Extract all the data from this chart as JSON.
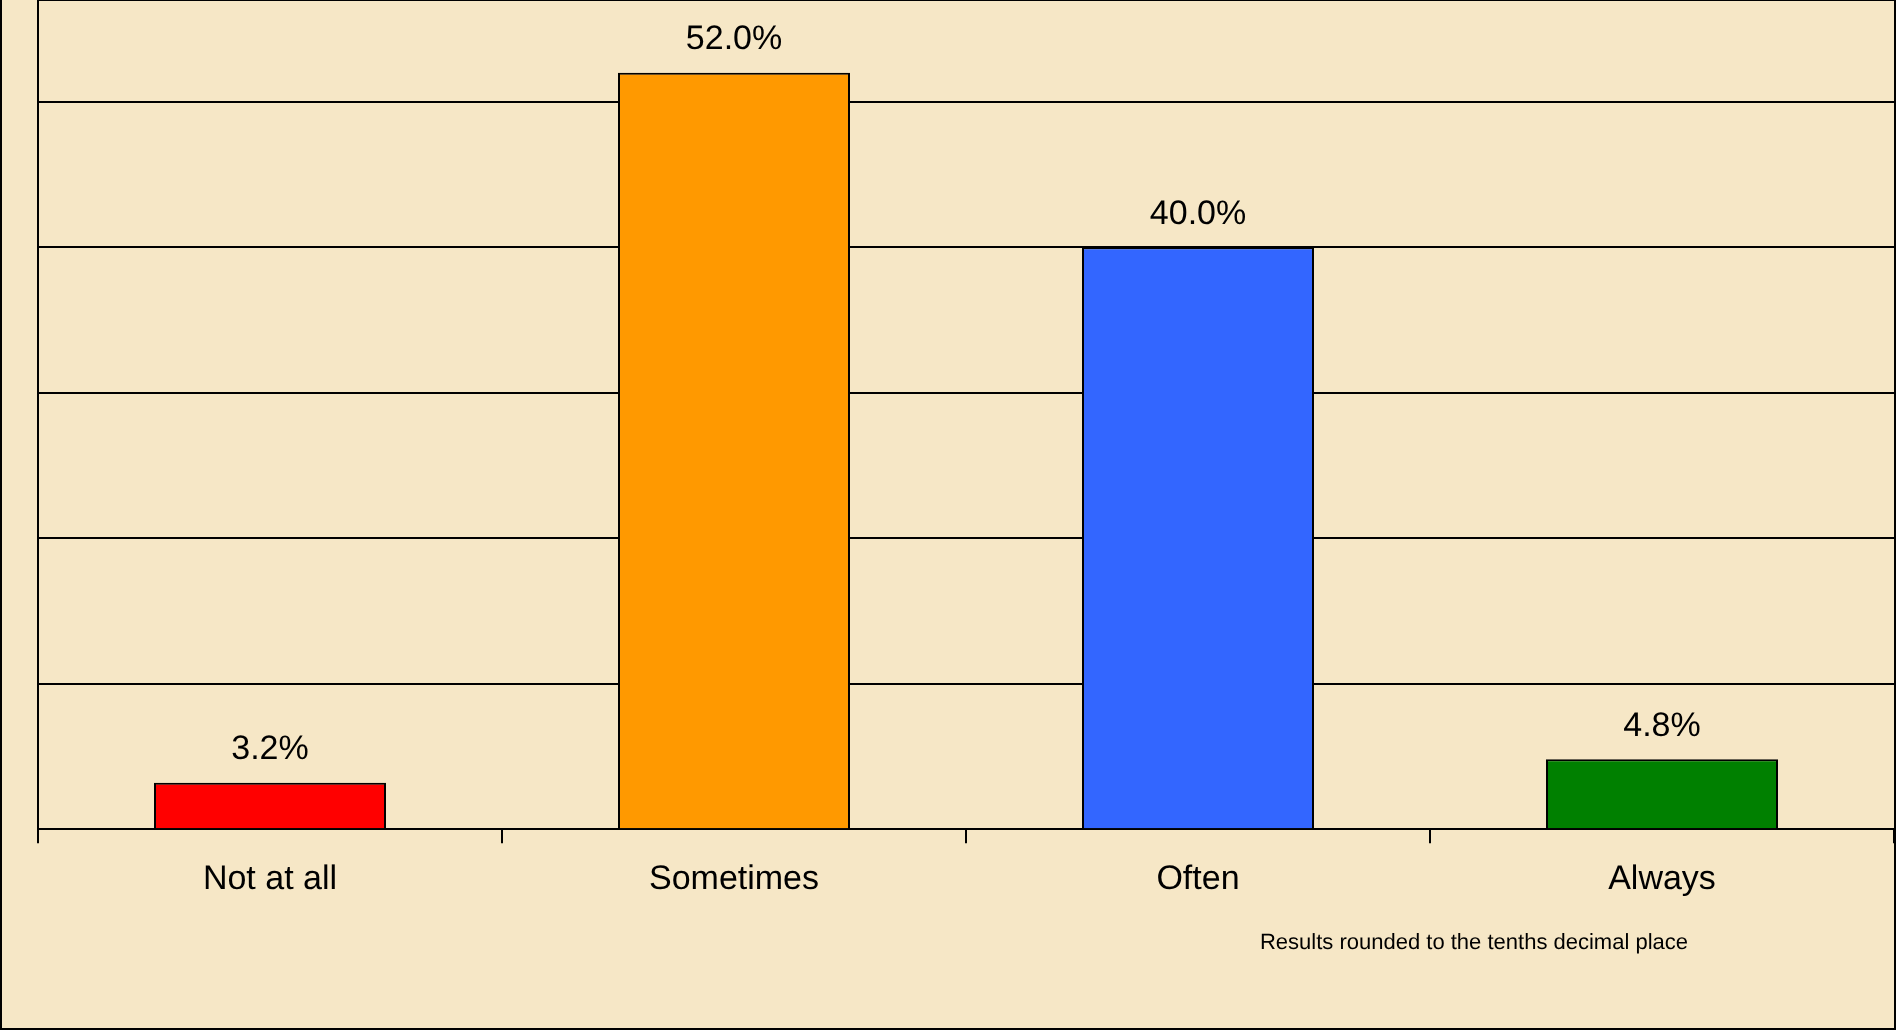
{
  "chart_data": {
    "type": "bar",
    "categories": [
      "Not at all",
      "Sometimes",
      "Often",
      "Always"
    ],
    "values": [
      3.2,
      52.0,
      40.0,
      4.8
    ],
    "colors": [
      "#ff0000",
      "#ff9900",
      "#3366ff",
      "#008000"
    ],
    "value_labels": [
      "3.2%",
      "52.0%",
      "40.0%",
      "4.8%"
    ],
    "ylim": [
      0,
      57
    ],
    "grid": "y",
    "legend": false,
    "annotations": [
      "Results rounded to the tenths decimal place"
    ]
  }
}
